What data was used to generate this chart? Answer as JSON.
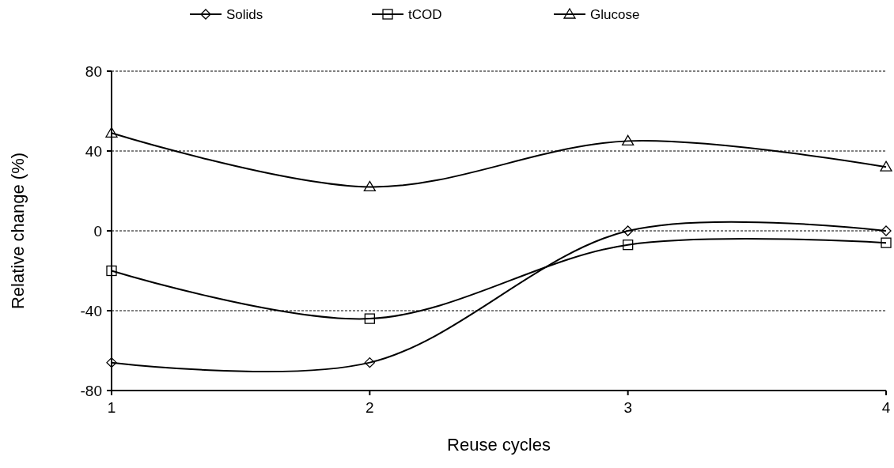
{
  "chart_data": {
    "type": "line",
    "xlabel": "Reuse cycles",
    "ylabel": "Relative change (%)",
    "x": [
      1,
      2,
      3,
      4
    ],
    "xlim": [
      1,
      4
    ],
    "xticks": [
      1,
      2,
      3,
      4
    ],
    "ylim": [
      -80,
      80
    ],
    "yticks": [
      -80,
      -40,
      0,
      40,
      80
    ],
    "grid": "y",
    "legend": "top",
    "line_style": "solid",
    "series": [
      {
        "name": "Solids",
        "color": "#000000",
        "marker": "diamond",
        "values": [
          -66,
          -66,
          0,
          0
        ]
      },
      {
        "name": "tCOD",
        "color": "#000000",
        "marker": "square",
        "values": [
          -20,
          -44,
          -7,
          -6
        ]
      },
      {
        "name": "Glucose",
        "color": "#000000",
        "marker": "triangle",
        "values": [
          49,
          22,
          45,
          32
        ]
      }
    ]
  }
}
